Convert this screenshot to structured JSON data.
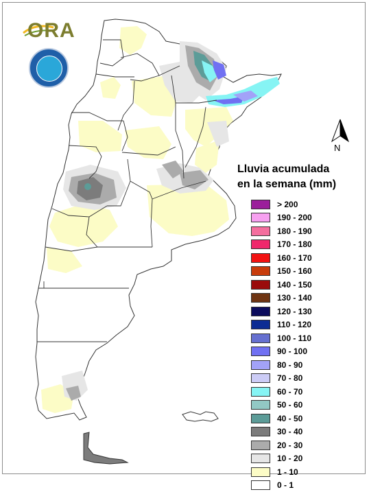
{
  "header": {
    "brand_text": "ORA",
    "seal_icon": "smn-argentina-seal-icon"
  },
  "north_arrow": {
    "label": "N",
    "icon": "north-arrow-icon"
  },
  "legend": {
    "title_line1": "Lluvia acumulada",
    "title_line2": "en la semana (mm)",
    "items": [
      {
        "label": "> 200",
        "color": "#9b1f9b"
      },
      {
        "label": "190 - 200",
        "color": "#f7a0f0"
      },
      {
        "label": "180 - 190",
        "color": "#f46e9e"
      },
      {
        "label": "170 - 180",
        "color": "#f0286c"
      },
      {
        "label": "160 - 170",
        "color": "#f21212"
      },
      {
        "label": "150 - 160",
        "color": "#c83c0c"
      },
      {
        "label": "140 - 150",
        "color": "#9a0c0c"
      },
      {
        "label": "130 - 140",
        "color": "#6e3412"
      },
      {
        "label": "120 - 130",
        "color": "#0c0c5c"
      },
      {
        "label": "110 - 120",
        "color": "#0c2c94"
      },
      {
        "label": "100 - 110",
        "color": "#6670d0"
      },
      {
        "label": "90 - 100",
        "color": "#7070f2"
      },
      {
        "label": "80 - 90",
        "color": "#a2a2f8"
      },
      {
        "label": "70 - 80",
        "color": "#ccccf6"
      },
      {
        "label": "60 - 70",
        "color": "#86f4f4"
      },
      {
        "label": "50 - 60",
        "color": "#92c8c4"
      },
      {
        "label": "40 - 50",
        "color": "#5c9c98"
      },
      {
        "label": "30 - 40",
        "color": "#7c7c7c"
      },
      {
        "label": "20 - 30",
        "color": "#ababab"
      },
      {
        "label": "10 - 20",
        "color": "#e6e6e6"
      },
      {
        "label": "1 - 10",
        "color": "#fcfcc6"
      },
      {
        "label": "0 - 1",
        "color": "#ffffff"
      }
    ]
  }
}
